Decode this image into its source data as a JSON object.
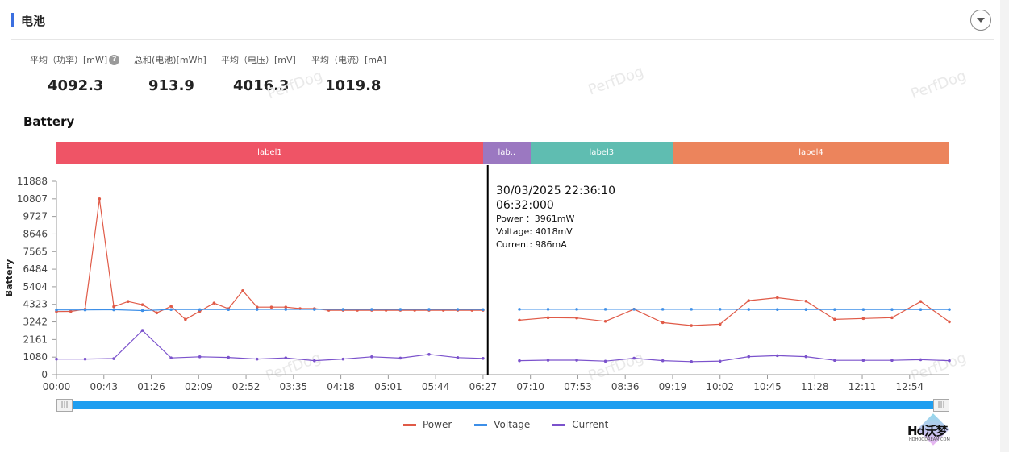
{
  "header": {
    "title": "电池"
  },
  "stats": [
    {
      "label": "平均（功率）[mW]",
      "value": "4092.3",
      "has_help": true
    },
    {
      "label": "总和(电池)[mWh]",
      "value": "913.9",
      "has_help": false
    },
    {
      "label": "平均（电压）[mV]",
      "value": "4016.3",
      "has_help": false
    },
    {
      "label": "平均（电流）[mA]",
      "value": "1019.8",
      "has_help": false
    }
  ],
  "help_glyph": "?",
  "section_title": "Battery",
  "watermark": "PerfDog",
  "labels": [
    {
      "text": "label1",
      "color": "#ef5466",
      "start": "00:00",
      "end": "06:27"
    },
    {
      "text": "lab..",
      "color": "#9b78c1",
      "start": "06:27",
      "end": "07:10"
    },
    {
      "text": "label3",
      "color": "#5fbdb1",
      "start": "07:10",
      "end": "09:19"
    },
    {
      "text": "label4",
      "color": "#ec845c",
      "start": "09:19",
      "end": "13:30"
    }
  ],
  "tooltip": {
    "datetime": "30/03/2025 22:36:10",
    "time": "06:32:000",
    "lines": [
      "Power ：3961mW",
      "Voltage: 4018mV",
      "Current: 986mA"
    ]
  },
  "slider": {
    "left_handle": "|||",
    "right_handle": "|||"
  },
  "logo": {
    "text": "Hd沃梦",
    "sub": "HDHOODREAM.COM"
  },
  "chart_data": {
    "type": "line",
    "ylabel": "Battery",
    "ylim": [
      0,
      11888
    ],
    "yticks": [
      0,
      1080,
      2161,
      3242,
      4323,
      5404,
      6484,
      7565,
      8646,
      9727,
      10807,
      11888
    ],
    "xticks": [
      "00:00",
      "00:43",
      "01:26",
      "02:09",
      "02:52",
      "03:35",
      "04:18",
      "05:01",
      "05:44",
      "06:27",
      "07:10",
      "07:53",
      "08:36",
      "09:19",
      "10:02",
      "10:45",
      "11:28",
      "12:11",
      "12:54"
    ],
    "xlim_seconds": [
      0,
      48600
    ],
    "cursor_time": "06:32",
    "colors": {
      "Power": "#e05a47",
      "Voltage": "#3d8fe8",
      "Current": "#7b52cc"
    },
    "series": [
      {
        "name": "Power",
        "segments": [
          {
            "x": [
              "00:00",
              "00:13",
              "00:26",
              "00:39",
              "00:52",
              "01:05",
              "01:18",
              "01:31",
              "01:44",
              "01:57",
              "02:10",
              "02:23",
              "02:36",
              "02:49",
              "03:02",
              "03:15",
              "03:28",
              "03:41",
              "03:54",
              "04:07",
              "04:20",
              "04:33",
              "04:46",
              "04:59",
              "05:12",
              "05:25",
              "05:38",
              "05:51",
              "06:04",
              "06:17",
              "06:27"
            ],
            "y": [
              3880,
              3890,
              4020,
              10807,
              4180,
              4500,
              4300,
              3800,
              4200,
              3400,
              3900,
              4400,
              4050,
              5160,
              4150,
              4150,
              4150,
              4060,
              4060,
              3960,
              3960,
              3960,
              3960,
              3960,
              3960,
              3960,
              3960,
              3960,
              3960,
              3960,
              3960
            ]
          },
          {
            "x": [
              "07:00",
              "07:26",
              "07:52",
              "08:18",
              "08:44",
              "09:10",
              "09:36",
              "10:02",
              "10:28",
              "10:54",
              "11:20",
              "11:46",
              "12:12",
              "12:38",
              "13:04",
              "13:30"
            ],
            "y": [
              3350,
              3500,
              3480,
              3280,
              4020,
              3200,
              3020,
              3100,
              4550,
              4730,
              4520,
              3400,
              3450,
              3500,
              4500,
              3250
            ]
          }
        ]
      },
      {
        "name": "Voltage",
        "segments": [
          {
            "x": [
              "00:00",
              "00:26",
              "00:52",
              "01:18",
              "01:44",
              "02:10",
              "02:36",
              "03:02",
              "03:28",
              "03:54",
              "04:20",
              "04:46",
              "05:12",
              "05:38",
              "06:04",
              "06:27"
            ],
            "y": [
              3980,
              3980,
              3990,
              3940,
              4000,
              4000,
              4000,
              4010,
              4010,
              4010,
              4010,
              4010,
              4010,
              4010,
              4010,
              4000
            ]
          },
          {
            "x": [
              "07:00",
              "07:26",
              "07:52",
              "08:18",
              "08:44",
              "09:10",
              "09:36",
              "10:02",
              "10:28",
              "10:54",
              "11:20",
              "11:46",
              "12:12",
              "12:38",
              "13:04",
              "13:30"
            ],
            "y": [
              4018,
              4018,
              4018,
              4018,
              4018,
              4018,
              4018,
              4018,
              4010,
              4005,
              4005,
              4005,
              4005,
              4005,
              4005,
              4005
            ]
          }
        ]
      },
      {
        "name": "Current",
        "segments": [
          {
            "x": [
              "00:00",
              "00:26",
              "00:52",
              "01:18",
              "01:44",
              "02:10",
              "02:36",
              "03:02",
              "03:28",
              "03:54",
              "04:20",
              "04:46",
              "05:12",
              "05:38",
              "06:04",
              "06:27"
            ],
            "y": [
              960,
              960,
              990,
              2720,
              1030,
              1100,
              1060,
              960,
              1030,
              860,
              960,
              1100,
              1020,
              1250,
              1050,
              1000
            ]
          },
          {
            "x": [
              "07:00",
              "07:26",
              "07:52",
              "08:18",
              "08:44",
              "09:10",
              "09:36",
              "10:02",
              "10:28",
              "10:54",
              "11:20",
              "11:46",
              "12:12",
              "12:38",
              "13:04",
              "13:30"
            ],
            "y": [
              860,
              890,
              890,
              830,
              1010,
              860,
              800,
              830,
              1110,
              1170,
              1110,
              880,
              880,
              880,
              920,
              860
            ]
          }
        ]
      }
    ]
  }
}
